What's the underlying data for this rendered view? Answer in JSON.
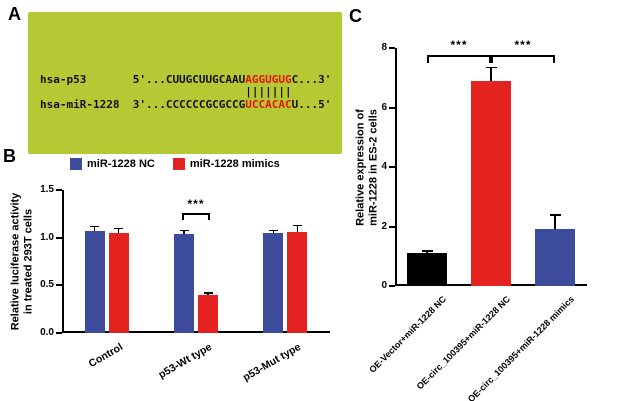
{
  "figure": {
    "panelA": {
      "label": "A",
      "bg_color": "#b5c935",
      "match_color": "#e8110c",
      "rows": [
        {
          "name": "hsa-p53",
          "prefix": "5'...CUUGCUUGCAAU",
          "match": "AGGUGUG",
          "suffix": "C...3'"
        },
        {
          "name": "hsa-miR-1228",
          "prefix": "3'...CCCCCCGCGCCG",
          "match": "UCCACAC",
          "suffix": "U...5'"
        }
      ],
      "bonds": 7
    },
    "panelB": {
      "label": "B"
    },
    "panelC": {
      "label": "C"
    }
  },
  "chart_data": [
    {
      "id": "B",
      "type": "bar",
      "title": "",
      "categories": [
        "Control",
        "p53-Wt type",
        "p53-Mut type"
      ],
      "series": [
        {
          "name": "miR-1228 NC",
          "color": "#3c4b9c",
          "values": [
            1.07,
            1.04,
            1.05
          ],
          "errors": [
            0.05,
            0.04,
            0.03
          ]
        },
        {
          "name": "miR-1228 mimics",
          "color": "#e42320",
          "values": [
            1.05,
            0.4,
            1.06
          ],
          "errors": [
            0.05,
            0.02,
            0.07
          ]
        }
      ],
      "xlabel": "",
      "ylabel": "Relative luciferase activity in treated 293T cells",
      "ylabel_lines": [
        "Relative luciferase activity",
        "in treated 293T cells"
      ],
      "ylim": [
        0,
        1.5
      ],
      "ytick_labels": [
        "0.0",
        "0.5",
        "1.0",
        "1.5"
      ],
      "legend_position": "top",
      "significance": [
        {
          "category": "p53-Wt type",
          "label": "***"
        }
      ]
    },
    {
      "id": "C",
      "type": "bar",
      "title": "",
      "categories": [
        "OE-Vector+miR-1228 NC",
        "OE-circ_100395+miR-1228 NC",
        "OE-circ_100395+miR-1228 mimics"
      ],
      "values": [
        1.1,
        6.9,
        1.9
      ],
      "errors": [
        0.08,
        0.45,
        0.5
      ],
      "colors": [
        "#000000",
        "#e42320",
        "#3c4b9c"
      ],
      "xlabel": "",
      "ylabel": "Relative expression of miR-1228 in ES-2 cells",
      "ylabel_lines": [
        "Relative expression of",
        "miR-1228 in ES-2 cells"
      ],
      "ylim": [
        0,
        8
      ],
      "ytick_labels": [
        "0",
        "2",
        "4",
        "6",
        "8"
      ],
      "significance": [
        {
          "from": 0,
          "to": 1,
          "label": "***"
        },
        {
          "from": 1,
          "to": 2,
          "label": "***"
        }
      ]
    }
  ]
}
